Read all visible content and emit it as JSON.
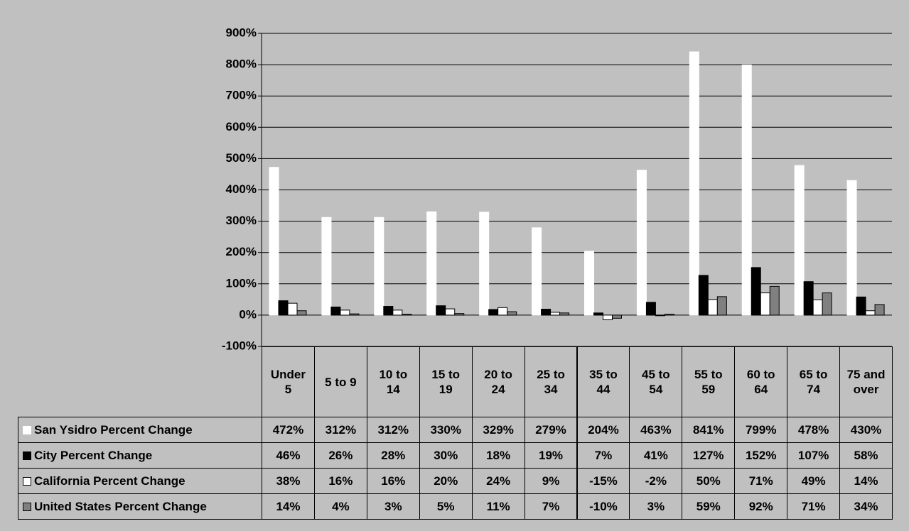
{
  "chart_data": {
    "type": "bar",
    "categories": [
      "Under 5",
      "5 to 9",
      "10 to 14",
      "15 to 19",
      "20 to 24",
      "25 to 34",
      "35 to 44",
      "45 to 54",
      "55 to 59",
      "60 to 64",
      "65 to 74",
      "75 and over"
    ],
    "series": [
      {
        "name": "San Ysidro Percent Change",
        "color": "#ffffff",
        "edgecolor": "#ffffff",
        "values": [
          472,
          312,
          312,
          330,
          329,
          279,
          204,
          463,
          841,
          799,
          478,
          430
        ],
        "value_labels": [
          "472%",
          "312%",
          "312%",
          "330%",
          "329%",
          "279%",
          "204%",
          "463%",
          "841%",
          "799%",
          "478%",
          "430%"
        ]
      },
      {
        "name": "City Percent Change",
        "color": "#000000",
        "edgecolor": "#000000",
        "values": [
          46,
          26,
          28,
          30,
          18,
          19,
          7,
          41,
          127,
          152,
          107,
          58
        ],
        "value_labels": [
          "46%",
          "26%",
          "28%",
          "30%",
          "18%",
          "19%",
          "7%",
          "41%",
          "127%",
          "152%",
          "107%",
          "58%"
        ]
      },
      {
        "name": "California Percent Change",
        "color": "#ffffff",
        "edgecolor": "#000000",
        "values": [
          38,
          16,
          16,
          20,
          24,
          9,
          -15,
          -2,
          50,
          71,
          49,
          14
        ],
        "value_labels": [
          "38%",
          "16%",
          "16%",
          "20%",
          "24%",
          "9%",
          "-15%",
          "-2%",
          "50%",
          "71%",
          "49%",
          "14%"
        ]
      },
      {
        "name": "United States Percent Change",
        "color": "#808080",
        "edgecolor": "#000000",
        "values": [
          14,
          4,
          3,
          5,
          11,
          7,
          -10,
          3,
          59,
          92,
          71,
          34
        ],
        "value_labels": [
          "14%",
          "4%",
          "3%",
          "5%",
          "11%",
          "7%",
          "-10%",
          "3%",
          "59%",
          "92%",
          "71%",
          "34%"
        ]
      }
    ],
    "ylim": [
      -100,
      900
    ],
    "yticks": [
      {
        "value": -100,
        "label": "-100%"
      },
      {
        "value": 0,
        "label": "0%"
      },
      {
        "value": 100,
        "label": "100%"
      },
      {
        "value": 200,
        "label": "200%"
      },
      {
        "value": 300,
        "label": "300%"
      },
      {
        "value": 400,
        "label": "400%"
      },
      {
        "value": 500,
        "label": "500%"
      },
      {
        "value": 600,
        "label": "600%"
      },
      {
        "value": 700,
        "label": "700%"
      },
      {
        "value": 800,
        "label": "800%"
      },
      {
        "value": 900,
        "label": "900%"
      }
    ],
    "grid": true
  }
}
